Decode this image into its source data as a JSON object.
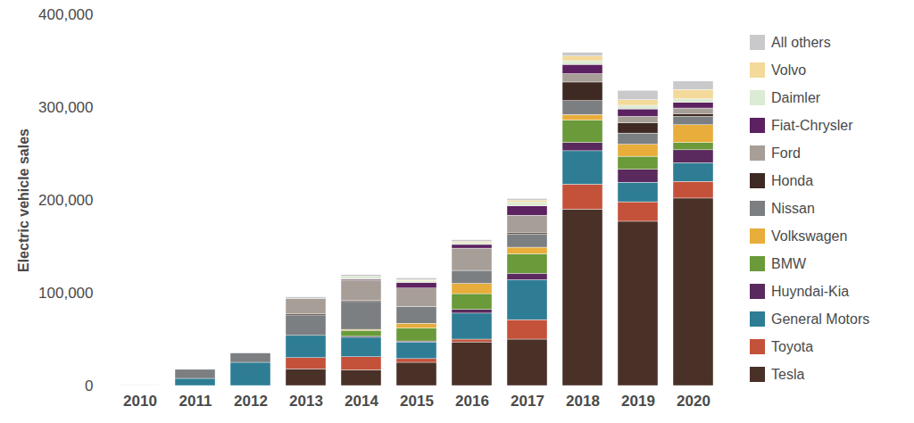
{
  "chart_data": {
    "type": "bar",
    "stacked": true,
    "legend": "right",
    "grid": false,
    "y_label": "Electric vehicle sales",
    "categories": [
      "2010",
      "2011",
      "2012",
      "2013",
      "2014",
      "2015",
      "2016",
      "2017",
      "2018",
      "2019",
      "2020"
    ],
    "ylim": [
      0,
      400000
    ],
    "yticks": [
      0,
      {
        "value": 100000,
        "label": "100,000"
      },
      {
        "value": 200000,
        "label": "200,000"
      },
      {
        "value": 300000,
        "label": "300,000"
      },
      {
        "value": 400000,
        "label": "400,000"
      }
    ],
    "series": [
      {
        "name": "Tesla",
        "color": "#4a3128",
        "values": [
          0,
          0,
          0,
          18000,
          17000,
          25000,
          47000,
          50000,
          190000,
          177000,
          202000
        ]
      },
      {
        "name": "Toyota",
        "color": "#c4523a",
        "values": [
          0,
          0,
          0,
          12000,
          14000,
          4000,
          3000,
          21000,
          27000,
          21000,
          18000
        ]
      },
      {
        "name": "General Motors",
        "color": "#2e7d95",
        "values": [
          300,
          7700,
          25000,
          24000,
          21000,
          18000,
          28000,
          43000,
          36000,
          21000,
          20000
        ]
      },
      {
        "name": "Huyndai-Kia",
        "color": "#5a2a5e",
        "values": [
          0,
          0,
          0,
          0,
          1000,
          1000,
          4000,
          7000,
          9000,
          14000,
          14000
        ]
      },
      {
        "name": "BMW",
        "color": "#6a9a3a",
        "values": [
          0,
          0,
          0,
          0,
          6500,
          14000,
          17000,
          21000,
          24000,
          14000,
          8000
        ]
      },
      {
        "name": "Volkswagen",
        "color": "#e8ad3a",
        "values": [
          0,
          0,
          0,
          0,
          1000,
          5000,
          11000,
          7000,
          6000,
          13000,
          19000
        ]
      },
      {
        "name": "Nissan",
        "color": "#7c7f82",
        "values": [
          20,
          9700,
          10000,
          22000,
          30000,
          18000,
          14000,
          14000,
          15000,
          12000,
          9000
        ]
      },
      {
        "name": "Honda",
        "color": "#3e2a22",
        "values": [
          0,
          0,
          0,
          1500,
          1000,
          0,
          0,
          1500,
          20000,
          11000,
          3000
        ]
      },
      {
        "name": "Ford",
        "color": "#a79e97",
        "values": [
          0,
          0,
          0,
          16000,
          22000,
          20000,
          24000,
          19000,
          9000,
          7000,
          6000
        ]
      },
      {
        "name": "Fiat-Chrysler",
        "color": "#5c2160",
        "values": [
          0,
          0,
          0,
          0,
          1000,
          6000,
          4000,
          10000,
          10000,
          8000,
          6000
        ]
      },
      {
        "name": "Daimler",
        "color": "#dcebd3",
        "values": [
          0,
          0,
          0,
          0,
          3000,
          2000,
          2000,
          4000,
          4000,
          4000,
          4000
        ]
      },
      {
        "name": "Volvo",
        "color": "#f3d99a",
        "values": [
          0,
          0,
          0,
          0,
          0,
          1000,
          1000,
          2000,
          5000,
          6000,
          10000
        ]
      },
      {
        "name": "All others",
        "color": "#c9c9cb",
        "values": [
          0,
          0,
          0,
          2000,
          2000,
          2000,
          2000,
          2000,
          4000,
          10000,
          9000
        ]
      }
    ]
  }
}
